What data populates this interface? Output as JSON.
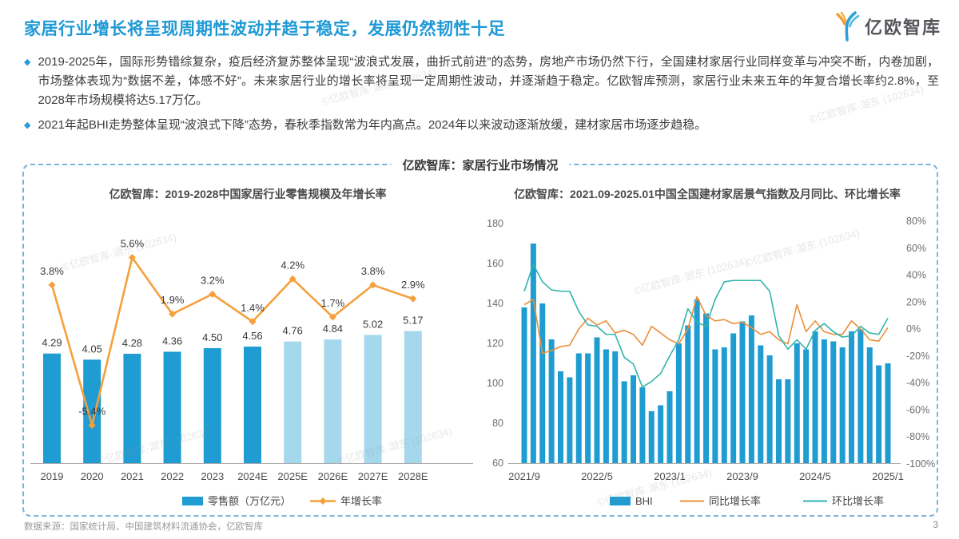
{
  "page": {
    "title": "家居行业增长将呈现周期性波动并趋于稳定，发展仍然韧性十足",
    "logo_text": "亿欧智库",
    "footer_source": "数据来源：国家统计局、中国建筑材料流通协会，亿欧智库",
    "page_number": "3",
    "watermark": "©亿欧智库·湖东 (102634)"
  },
  "bullets": [
    "2019-2025年，国际形势错综复杂，疫后经济复苏整体呈现“波浪式发展，曲折式前进”的态势，房地产市场仍然下行，全国建材家居行业同样变革与冲突不断，内卷加剧，市场整体表现为“数据不差，体感不好”。未来家居行业的增长率将呈现一定周期性波动，并逐渐趋于稳定。亿欧智库预测，家居行业未来五年的年复合增长率约2.8%，至2028年市场规模将达5.17万亿。",
    "2021年起BHI走势整体呈现“波浪式下降”态势，春秋季指数常为年内高点。2024年以来波动逐渐放缓，建材家居市场逐步趋稳。"
  ],
  "panel": {
    "label": "亿欧智库：家居行业市场情况"
  },
  "chart_data": [
    {
      "type": "bar+line",
      "title": "亿欧智库：2019-2028中国家居行业零售规模及年增长率",
      "categories": [
        "2019",
        "2020",
        "2021",
        "2022",
        "2023",
        "2024E",
        "2025E",
        "2026E",
        "2027E",
        "2028E"
      ],
      "series": [
        {
          "name": "零售额（万亿元）",
          "type": "bar",
          "values": [
            4.29,
            4.05,
            4.28,
            4.36,
            4.5,
            4.56,
            4.76,
            4.84,
            5.02,
            5.17
          ],
          "labels": [
            "4.29",
            "4.05",
            "4.28",
            "4.36",
            "4.50",
            "4.56",
            "4.76",
            "4.84",
            "5.02",
            "5.17"
          ]
        },
        {
          "name": "年增长率",
          "type": "line",
          "unit": "%",
          "values": [
            3.8,
            -5.4,
            5.6,
            1.9,
            3.2,
            1.4,
            4.2,
            1.7,
            3.8,
            2.9
          ],
          "labels": [
            "3.8%",
            "-5.4%",
            "5.6%",
            "1.9%",
            "3.2%",
            "1.4%",
            "4.2%",
            "1.7%",
            "3.8%",
            "2.9%"
          ]
        }
      ],
      "estimate_start_index": 6,
      "colors": {
        "bar_actual": "#1F9CD2",
        "bar_estimate": "#A6D8ED",
        "line": "#F5A03C"
      },
      "legend": [
        "零售额（万亿元）",
        "年增长率"
      ]
    },
    {
      "type": "bar+2lines",
      "title": "亿欧智库：2021.09-2025.01中国全国建材家居景气指数及月同比、环比增长率",
      "months": [
        "2021/9",
        "2021/10",
        "2021/11",
        "2021/12",
        "2022/1",
        "2022/2",
        "2022/3",
        "2022/4",
        "2022/5",
        "2022/6",
        "2022/7",
        "2022/8",
        "2022/9",
        "2022/10",
        "2022/11",
        "2022/12",
        "2023/1",
        "2023/2",
        "2023/3",
        "2023/4",
        "2023/5",
        "2023/6",
        "2023/7",
        "2023/8",
        "2023/9",
        "2023/10",
        "2023/11",
        "2023/12",
        "2024/1",
        "2024/2",
        "2024/3",
        "2024/4",
        "2024/5",
        "2024/6",
        "2024/7",
        "2024/8",
        "2024/9",
        "2024/10",
        "2024/11",
        "2024/12",
        "2025/1"
      ],
      "x_tick_every": 8,
      "left_axis": {
        "min": 60,
        "max": 180,
        "ticks": [
          180,
          160,
          140,
          120,
          100,
          80,
          60
        ]
      },
      "right_axis": {
        "min": -100,
        "max": 80,
        "ticks": [
          80,
          60,
          40,
          20,
          0,
          -20,
          -40,
          -60,
          -80,
          -100
        ],
        "unit": "%"
      },
      "series": [
        {
          "name": "BHI",
          "type": "bar",
          "axis": "left",
          "values": [
            138,
            170,
            140,
            122,
            106,
            103,
            115,
            115,
            123,
            117,
            116,
            101,
            104,
            98,
            86,
            89,
            96,
            120,
            129,
            142,
            135,
            117,
            118,
            125,
            131,
            134,
            119,
            114,
            102,
            102,
            120,
            117,
            126,
            122,
            121,
            118,
            126,
            127,
            118,
            109,
            110
          ]
        },
        {
          "name": "同比增长率",
          "type": "line",
          "axis": "right",
          "unit": "%",
          "values": [
            18,
            22,
            -18,
            -16,
            -13,
            -12,
            0,
            8,
            3,
            6,
            -3,
            -1,
            -4,
            -12,
            2,
            -3,
            -8,
            -11,
            0,
            24,
            10,
            6,
            7,
            4,
            5,
            1,
            -4,
            -2,
            -8,
            -11,
            18,
            -2,
            6,
            -2,
            -4,
            -4,
            6,
            0,
            -8,
            -9,
            1
          ]
        },
        {
          "name": "环比增长率",
          "type": "line",
          "axis": "right",
          "unit": "%",
          "values": [
            28,
            48,
            35,
            29,
            28,
            28,
            13,
            3,
            2,
            -4,
            -4,
            -21,
            -26,
            -43,
            -39,
            -33,
            -20,
            -8,
            15,
            5,
            2,
            22,
            35,
            36,
            36,
            36,
            36,
            28,
            -5,
            -15,
            -8,
            -15,
            -1,
            4,
            -2,
            -6,
            -5,
            2,
            -3,
            -4,
            8
          ]
        }
      ],
      "colors": {
        "bar": "#1F9CD2",
        "yoy_line": "#EA8F3A",
        "mom_line": "#30B4AB"
      },
      "legend": [
        "BHI",
        "同比增长率",
        "环比增长率"
      ]
    }
  ]
}
